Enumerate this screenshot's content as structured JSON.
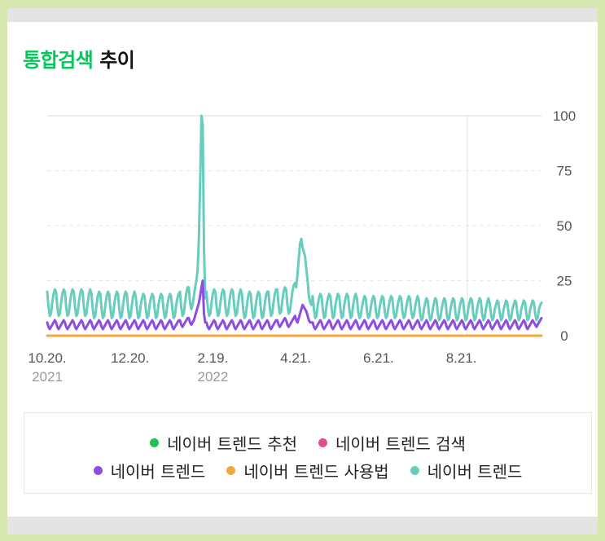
{
  "title": {
    "accent": "통합검색",
    "rest": "추이"
  },
  "chart_data": {
    "type": "line",
    "title": "통합검색 추이",
    "ylim": [
      0,
      100
    ],
    "y_ticks": [
      100,
      75,
      50,
      25,
      0
    ],
    "y_axis_position": "right",
    "x_ticks": [
      {
        "label": "10.20.",
        "sub": "2021",
        "date": "2021-10-20"
      },
      {
        "label": "12.20.",
        "sub": "",
        "date": "2021-12-20"
      },
      {
        "label": "2.19.",
        "sub": "2022",
        "date": "2022-02-19"
      },
      {
        "label": "4.21.",
        "sub": "",
        "date": "2022-04-21"
      },
      {
        "label": "6.21.",
        "sub": "",
        "date": "2022-06-21"
      },
      {
        "label": "8.21.",
        "sub": "",
        "date": "2022-08-21"
      }
    ],
    "x_range": [
      "2021-10-20",
      "2022-10-19"
    ],
    "grid": "horizontal dashed",
    "legend_position": "bottom",
    "series": [
      {
        "name": "네이버 트렌드 추천",
        "color": "#1ec25c",
        "values": []
      },
      {
        "name": "네이버 트렌드 검색",
        "color": "#e0508f",
        "values": []
      },
      {
        "name": "네이버 트렌드",
        "color": "#8c4de0",
        "values": [
          6,
          4,
          3,
          4,
          5,
          6,
          7,
          6,
          4,
          3,
          4,
          5,
          6,
          7,
          6,
          4,
          3,
          4,
          5,
          6,
          7,
          6,
          4,
          3,
          4,
          5,
          6,
          7,
          6,
          4,
          3,
          4,
          5,
          6,
          7,
          6,
          4,
          3,
          4,
          5,
          6,
          7,
          6,
          4,
          3,
          4,
          5,
          6,
          7,
          6,
          4,
          3,
          4,
          5,
          6,
          7,
          6,
          4,
          3,
          4,
          5,
          6,
          7,
          6,
          4,
          3,
          4,
          5,
          6,
          7,
          6,
          4,
          3,
          4,
          5,
          6,
          7,
          6,
          4,
          3,
          4,
          5,
          6,
          7,
          6,
          4,
          3,
          4,
          5,
          6,
          7,
          6,
          4,
          3,
          4,
          5,
          6,
          7,
          6,
          4,
          3,
          4,
          5,
          6,
          7,
          7,
          5,
          4,
          5,
          6,
          7,
          8,
          8,
          6,
          5,
          6,
          7,
          9,
          11,
          13,
          15,
          18,
          22,
          25,
          10,
          6,
          6,
          4,
          3,
          4,
          5,
          6,
          7,
          6,
          4,
          3,
          4,
          5,
          6,
          7,
          6,
          4,
          3,
          4,
          5,
          6,
          7,
          6,
          4,
          3,
          4,
          5,
          6,
          7,
          6,
          4,
          3,
          4,
          5,
          6,
          7,
          6,
          4,
          3,
          4,
          5,
          6,
          7,
          6,
          4,
          3,
          4,
          5,
          6,
          7,
          6,
          4,
          3,
          4,
          5,
          6,
          7,
          7,
          5,
          4,
          5,
          6,
          7,
          8,
          7,
          5,
          4,
          5,
          6,
          7,
          8,
          9,
          7,
          6,
          8,
          10,
          12,
          14,
          13,
          12,
          11,
          9,
          7,
          6,
          6,
          6,
          4,
          3,
          4,
          5,
          6,
          7,
          6,
          4,
          3,
          4,
          5,
          6,
          7,
          6,
          4,
          3,
          4,
          5,
          6,
          7,
          6,
          4,
          3,
          4,
          5,
          6,
          7,
          6,
          4,
          3,
          4,
          5,
          6,
          7,
          6,
          4,
          3,
          4,
          5,
          6,
          7,
          6,
          4,
          3,
          4,
          5,
          6,
          7,
          6,
          4,
          3,
          4,
          5,
          6,
          7,
          6,
          4,
          3,
          4,
          5,
          6,
          7,
          6,
          4,
          3,
          4,
          5,
          6,
          7,
          6,
          4,
          3,
          4,
          5,
          6,
          7,
          6,
          4,
          3,
          4,
          5,
          6,
          7,
          6,
          4,
          3,
          4,
          5,
          6,
          7,
          6,
          4,
          3,
          4,
          5,
          6,
          7,
          6,
          4,
          3,
          4,
          5,
          6,
          7,
          6,
          4,
          3,
          4,
          5,
          6,
          7,
          6,
          4,
          3,
          4,
          5,
          6,
          7,
          6,
          4,
          3,
          4,
          5,
          6,
          7,
          6,
          4,
          3,
          4,
          5,
          6,
          7,
          6,
          4,
          3,
          4,
          5,
          6,
          7,
          6,
          4,
          3,
          4,
          5,
          6,
          7,
          6,
          4,
          3,
          4,
          5,
          6,
          7,
          6,
          4,
          3,
          4,
          5,
          6,
          7,
          6,
          4,
          3,
          4,
          5,
          6,
          7,
          6,
          4,
          3,
          4,
          5,
          6,
          7,
          6,
          5,
          4,
          5,
          6,
          7,
          8
        ]
      },
      {
        "name": "네이버 트렌드 사용법",
        "color": "#f2a93b",
        "values": [
          0,
          0
        ]
      },
      {
        "name": "네이버 트렌드",
        "color": "#67cdbd",
        "values": [
          20,
          13,
          9,
          10,
          15,
          19,
          21,
          20,
          13,
          9,
          10,
          15,
          19,
          21,
          20,
          13,
          9,
          10,
          15,
          19,
          21,
          20,
          13,
          9,
          10,
          15,
          19,
          21,
          20,
          13,
          9,
          10,
          15,
          19,
          21,
          19,
          12,
          8,
          9,
          14,
          18,
          20,
          19,
          12,
          8,
          9,
          14,
          18,
          20,
          19,
          12,
          8,
          9,
          14,
          18,
          20,
          19,
          12,
          8,
          9,
          14,
          18,
          20,
          19,
          12,
          8,
          9,
          14,
          18,
          20,
          18,
          12,
          8,
          9,
          14,
          17,
          19,
          18,
          12,
          8,
          9,
          14,
          17,
          19,
          18,
          12,
          8,
          9,
          14,
          17,
          19,
          18,
          12,
          8,
          9,
          14,
          17,
          19,
          18,
          12,
          8,
          9,
          14,
          17,
          19,
          20,
          13,
          9,
          10,
          15,
          19,
          22,
          22,
          15,
          12,
          14,
          18,
          22,
          25,
          30,
          45,
          70,
          100,
          96,
          40,
          17,
          20,
          13,
          9,
          10,
          15,
          19,
          21,
          20,
          13,
          9,
          10,
          15,
          19,
          21,
          20,
          13,
          9,
          10,
          15,
          19,
          21,
          20,
          13,
          9,
          10,
          15,
          19,
          21,
          19,
          12,
          8,
          9,
          14,
          18,
          20,
          19,
          12,
          8,
          9,
          14,
          18,
          20,
          19,
          12,
          8,
          9,
          14,
          18,
          20,
          20,
          13,
          9,
          10,
          15,
          19,
          21,
          21,
          14,
          10,
          11,
          16,
          20,
          22,
          21,
          14,
          10,
          11,
          16,
          20,
          23,
          24,
          22,
          28,
          35,
          42,
          44,
          40,
          38,
          36,
          30,
          25,
          18,
          15,
          14,
          18,
          12,
          8,
          9,
          14,
          17,
          19,
          18,
          12,
          8,
          9,
          14,
          17,
          19,
          18,
          12,
          8,
          9,
          14,
          17,
          19,
          18,
          12,
          8,
          9,
          14,
          17,
          19,
          18,
          12,
          8,
          9,
          14,
          17,
          19,
          17,
          11,
          8,
          9,
          13,
          16,
          18,
          17,
          11,
          8,
          9,
          13,
          16,
          18,
          17,
          11,
          8,
          9,
          13,
          16,
          18,
          17,
          11,
          8,
          9,
          13,
          16,
          18,
          17,
          11,
          8,
          9,
          13,
          16,
          18,
          17,
          11,
          8,
          9,
          13,
          16,
          18,
          17,
          11,
          8,
          9,
          13,
          16,
          18,
          16,
          10,
          7,
          8,
          12,
          15,
          17,
          16,
          10,
          7,
          8,
          12,
          15,
          17,
          16,
          10,
          7,
          8,
          12,
          15,
          17,
          16,
          10,
          7,
          8,
          12,
          15,
          17,
          16,
          10,
          7,
          8,
          12,
          15,
          17,
          16,
          10,
          7,
          8,
          12,
          15,
          17,
          16,
          10,
          7,
          8,
          12,
          15,
          17,
          16,
          10,
          7,
          8,
          12,
          15,
          17,
          15,
          10,
          7,
          8,
          12,
          14,
          16,
          15,
          10,
          7,
          8,
          12,
          14,
          16,
          15,
          10,
          7,
          8,
          12,
          14,
          16,
          15,
          10,
          7,
          8,
          12,
          14,
          16,
          15,
          10,
          7,
          8,
          12,
          14,
          16,
          15,
          10,
          7,
          8,
          12,
          14,
          15
        ]
      }
    ]
  }
}
